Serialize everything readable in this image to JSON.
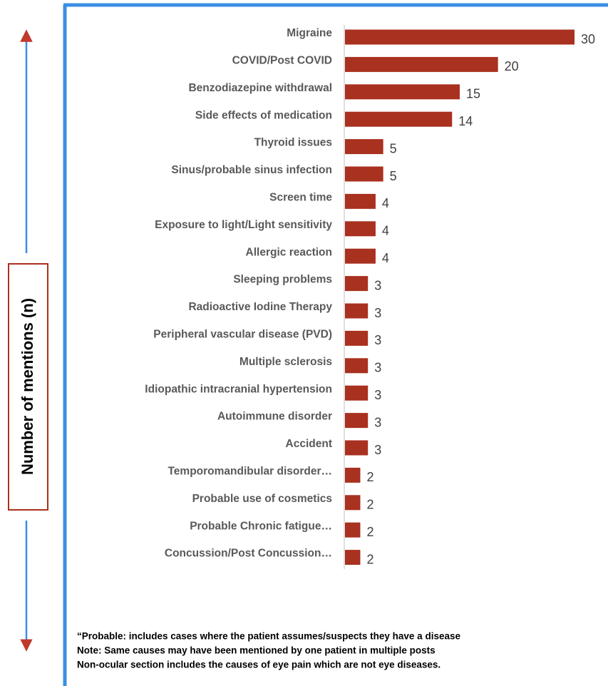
{
  "chart_data": {
    "type": "bar",
    "orientation": "horizontal",
    "axis_label": "Number of mentions (n)",
    "categories": [
      "Migraine",
      "COVID/Post COVID",
      "Benzodiazepine withdrawal",
      "Side effects of medication",
      "Thyroid issues",
      "Sinus/probable sinus infection",
      "Screen time",
      "Exposure to light/Light sensitivity",
      "Allergic reaction",
      "Sleeping problems",
      "Radioactive Iodine Therapy",
      "Peripheral vascular disease (PVD)",
      "Multiple sclerosis",
      "Idiopathic intracranial hypertension",
      "Autoimmune disorder",
      "Accident",
      "Temporomandibular disorder…",
      "Probable use of cosmetics",
      "Probable Chronic fatigue…",
      "Concussion/Post Concussion…"
    ],
    "values": [
      30,
      20,
      15,
      14,
      5,
      5,
      4,
      4,
      4,
      3,
      3,
      3,
      3,
      3,
      3,
      3,
      2,
      2,
      2,
      2
    ],
    "color": "#a9311f",
    "notes": [
      "“Probable: includes cases where the patient assumes/suspects they have a disease",
      "Note: Same causes may have been mentioned by one patient in multiple  posts",
      "Non-ocular section includes the causes of eye pain which are not eye diseases."
    ]
  }
}
